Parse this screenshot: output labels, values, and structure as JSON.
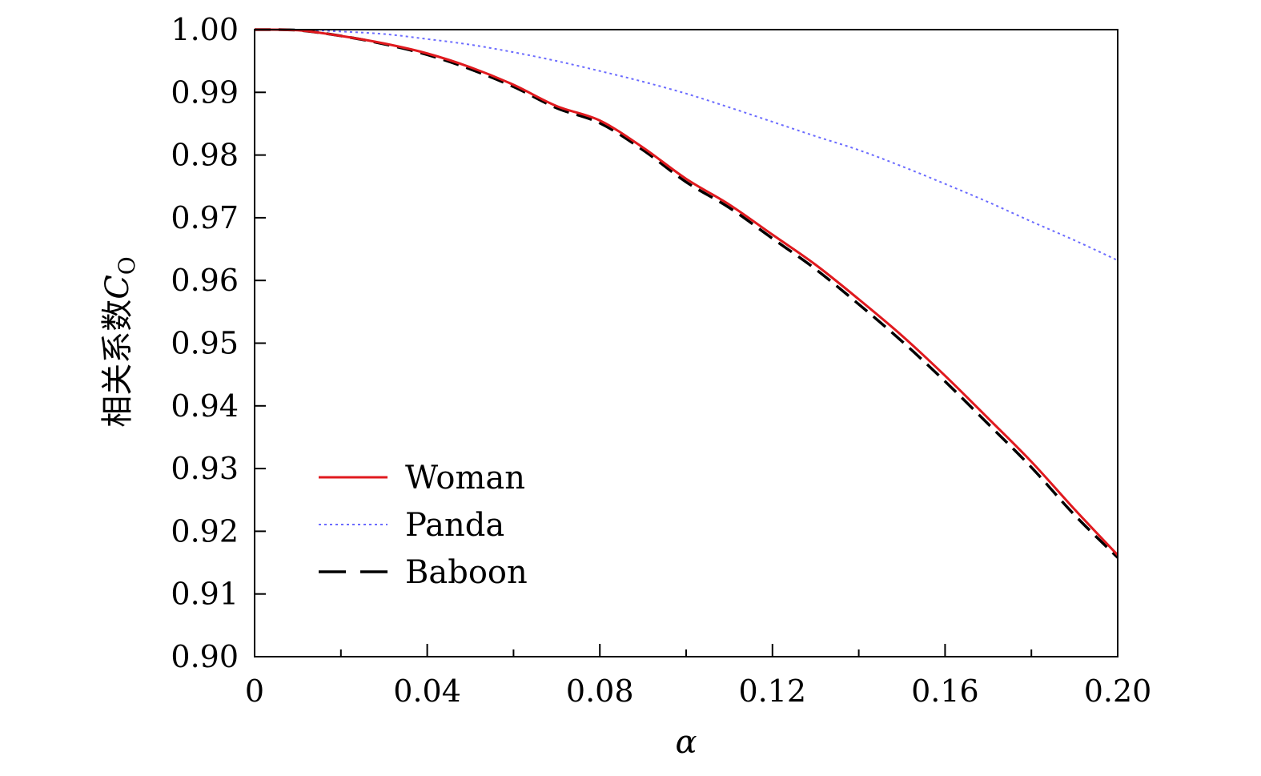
{
  "chart_data": {
    "type": "line",
    "xlabel": "α",
    "ylabel_text": "相关系数",
    "ylabel_symbol": "C",
    "ylabel_subscript": "O",
    "xlim": [
      0,
      0.2
    ],
    "ylim": [
      0.9,
      1.0
    ],
    "xticks": [
      0,
      0.04,
      0.08,
      0.12,
      0.16,
      0.2
    ],
    "xtick_labels": [
      "0",
      "0.04",
      "0.08",
      "0.12",
      "0.16",
      "0.20"
    ],
    "yticks": [
      0.9,
      0.91,
      0.92,
      0.93,
      0.94,
      0.95,
      0.96,
      0.97,
      0.98,
      0.99,
      1.0
    ],
    "ytick_labels": [
      "0.90",
      "0.91",
      "0.92",
      "0.93",
      "0.94",
      "0.95",
      "0.96",
      "0.97",
      "0.98",
      "0.99",
      "1.00"
    ],
    "grid": false,
    "legend_position": "bottom-left",
    "x": [
      0.0,
      0.01,
      0.02,
      0.03,
      0.04,
      0.05,
      0.06,
      0.07,
      0.08,
      0.09,
      0.1,
      0.11,
      0.12,
      0.13,
      0.14,
      0.15,
      0.16,
      0.17,
      0.18,
      0.19,
      0.2
    ],
    "series": [
      {
        "name": "Woman",
        "color": "#e0191e",
        "style": "solid",
        "values": [
          1.0,
          0.9999,
          0.999,
          0.9978,
          0.9962,
          0.994,
          0.9912,
          0.9878,
          0.9855,
          0.9812,
          0.9762,
          0.9721,
          0.9673,
          0.9625,
          0.957,
          0.9512,
          0.9448,
          0.938,
          0.9311,
          0.9235,
          0.9162
        ]
      },
      {
        "name": "Panda",
        "color": "#6b6bff",
        "style": "dotted",
        "values": [
          1.0,
          1.0,
          0.9997,
          0.9993,
          0.9985,
          0.9976,
          0.9964,
          0.995,
          0.9934,
          0.9917,
          0.9898,
          0.9876,
          0.9853,
          0.983,
          0.9808,
          0.9782,
          0.9754,
          0.9725,
          0.9694,
          0.9664,
          0.9632
        ]
      },
      {
        "name": "Baboon",
        "color": "#000000",
        "style": "dashed",
        "values": [
          1.0,
          0.9999,
          0.999,
          0.9977,
          0.996,
          0.9937,
          0.9909,
          0.9875,
          0.9851,
          0.9808,
          0.9757,
          0.9716,
          0.9667,
          0.9618,
          0.9562,
          0.9503,
          0.9439,
          0.9371,
          0.9302,
          0.9226,
          0.9158
        ]
      }
    ]
  }
}
